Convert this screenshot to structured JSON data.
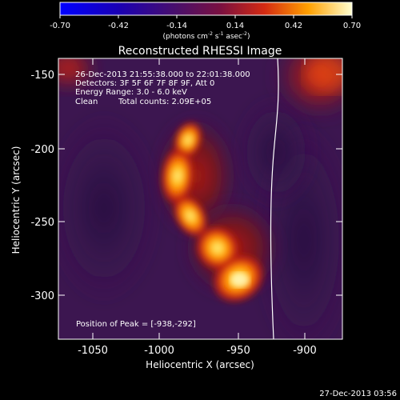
{
  "colorbar": {
    "ticks": [
      "-0.70",
      "-0.42",
      "-0.14",
      "0.14",
      "0.42",
      "0.70"
    ],
    "units_prefix": "(photons cm",
    "units_exp1": "-2",
    "units_mid": " s",
    "units_exp2": "-1",
    "units_mid2": " asec",
    "units_exp3": "-2",
    "units_suffix": ")"
  },
  "title": "Reconstructed RHESSI Image",
  "info": {
    "line1": "26-Dec-2013 21:55:38.000 to 22:01:38.000",
    "line2": "Detectors: 3F 5F 6F 7F 8F 9F, Att 0",
    "line3": "Energy Range: 3.0 - 6.0 keV",
    "line4_left": "Clean",
    "line4_right": "Total counts: 2.09E+05"
  },
  "peak_label": "Position of Peak = [-938,-292]",
  "axes": {
    "xlabel": "Heliocentric X (arcsec)",
    "ylabel": "Heliocentric Y (arcsec)",
    "xticks": [
      "-1050",
      "-1000",
      "-950",
      "-900"
    ],
    "yticks": [
      "-150",
      "-200",
      "-250",
      "-300"
    ]
  },
  "timestamp": "27-Dec-2013 03:56",
  "colors": {
    "limb": "#ffffff",
    "background": "#000000",
    "map_background": "#3c1650"
  }
}
